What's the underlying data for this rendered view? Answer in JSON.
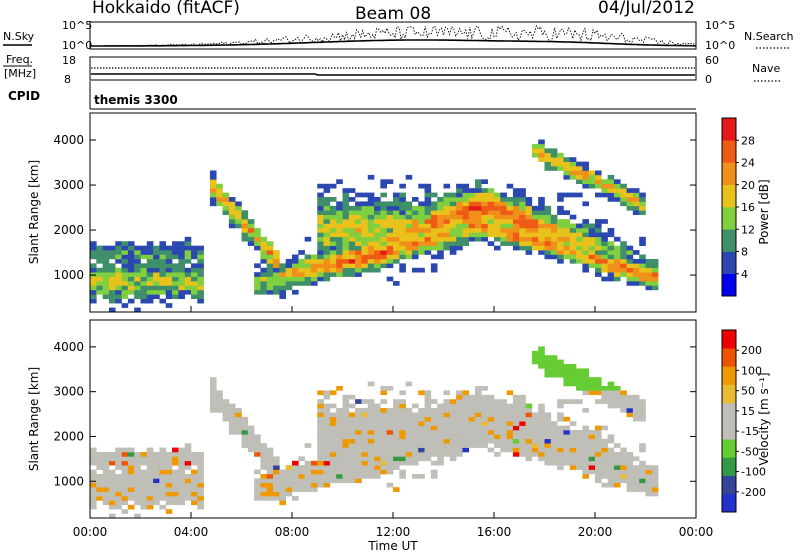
{
  "header": {
    "station": "Hokkaido (fitACF)",
    "beam": "Beam 08",
    "date": "04/Jul/2012"
  },
  "top_panels": {
    "nsky_label": "N.Sky",
    "nsearch_label": "N.Search",
    "freq_label_1": "Freq.",
    "freq_label_2": "[MHz]",
    "nave_label": "Nave",
    "cpid_label": "CPID",
    "cpid_value": "themis 3300",
    "nsky_ticks": [
      "10^5",
      "10^0"
    ],
    "nsearch_ticks": [
      "10^5",
      "10^0"
    ],
    "freq_ticks": [
      "18",
      "8"
    ],
    "nave_ticks": [
      "60",
      "0"
    ]
  },
  "colors": {
    "power_scale": [
      "#0000ee",
      "#2a48b0",
      "#3f8f6a",
      "#7fcf3f",
      "#e8c21a",
      "#f0901a",
      "#ef5a14",
      "#e41a1a"
    ],
    "velocity_scale": [
      "#ee0000",
      "#ee5500",
      "#ee9900",
      "#e8bb33",
      "#bfbfb8",
      "#bfbfb8",
      "#66cc33",
      "#339944",
      "#334499",
      "#2233cc"
    ],
    "grey": "#bfbfb8"
  },
  "chart_data": [
    {
      "type": "heatmap",
      "name": "power",
      "xlabel": "",
      "ylabel": "Slant Range [km]",
      "y_ticks": [
        "1000",
        "2000",
        "3000",
        "4000"
      ],
      "colorbar_label": "Power [dB]",
      "colorbar_ticks": [
        "4",
        "8",
        "12",
        "16",
        "20",
        "24",
        "28"
      ],
      "colorbar_range": [
        0,
        32
      ],
      "ylim": [
        180,
        4600
      ],
      "xlim": [
        0,
        24
      ],
      "grid": false
    },
    {
      "type": "heatmap",
      "name": "velocity",
      "xlabel": "Time UT",
      "ylabel": "Slant Range [km]",
      "x_ticks": [
        "00:00",
        "04:00",
        "08:00",
        "12:00",
        "16:00",
        "20:00",
        "00:00"
      ],
      "y_ticks": [
        "1000",
        "2000",
        "3000",
        "4000"
      ],
      "colorbar_label": "Velocity [m s⁻¹]",
      "colorbar_ticks": [
        "200",
        "100",
        "50",
        "15",
        "-15",
        "-50",
        "-100",
        "-200"
      ],
      "ylim": [
        180,
        4600
      ],
      "xlim": [
        0,
        24
      ],
      "grid": false
    }
  ]
}
